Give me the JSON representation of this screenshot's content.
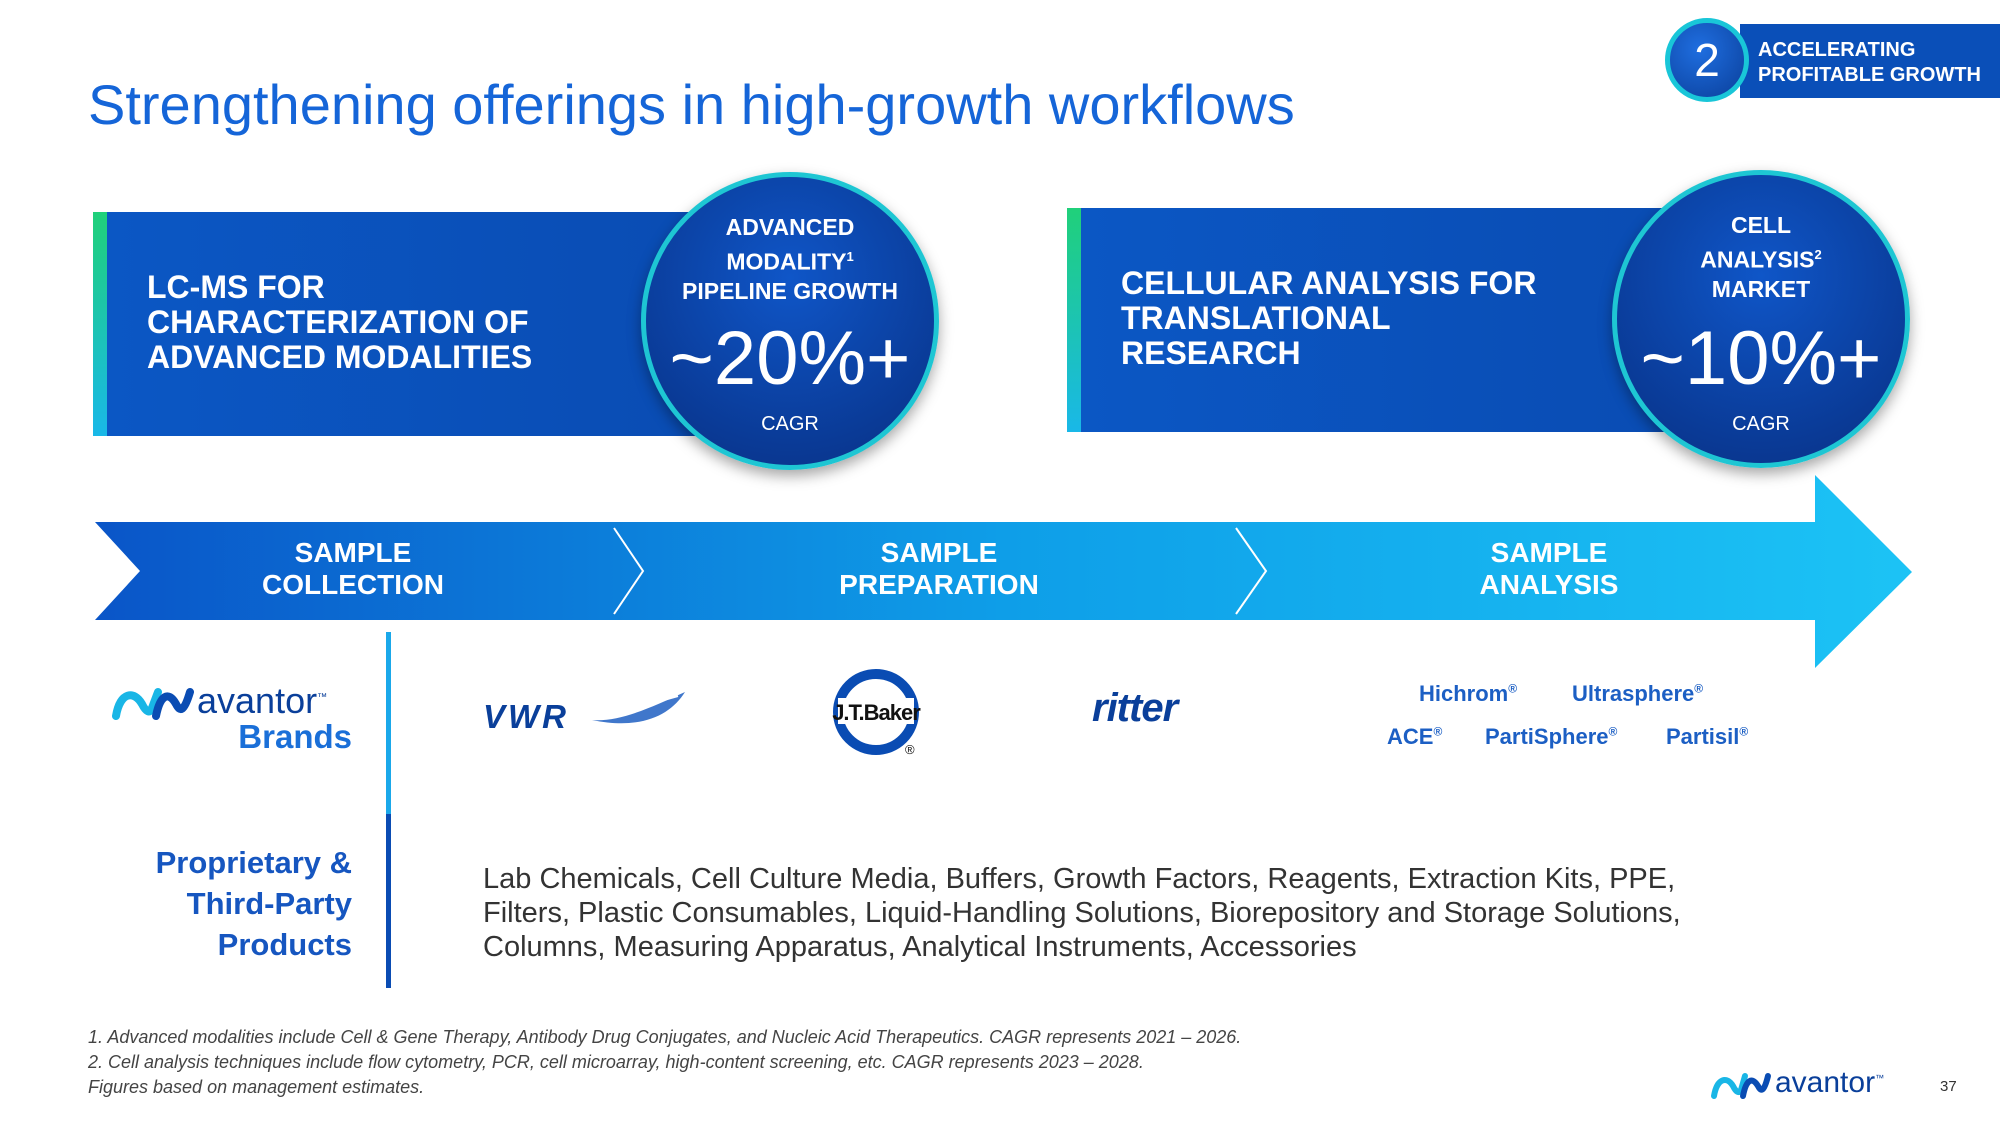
{
  "title": "Strengthening offerings in high-growth workflows",
  "badge": {
    "number": "2",
    "line1": "ACCELERATING",
    "line2": "PROFITABLE GROWTH"
  },
  "box1": {
    "lines": [
      "LC-MS FOR",
      "CHARACTERIZATION OF",
      "ADVANCED MODALITIES"
    ],
    "circle": {
      "line1": "ADVANCED",
      "line2": "MODALITY",
      "sup": "1",
      "line3": "PIPELINE GROWTH",
      "value": "~20%+",
      "unit": "CAGR"
    }
  },
  "box2": {
    "lines": [
      "CELLULAR ANALYSIS FOR",
      "TRANSLATIONAL",
      "RESEARCH"
    ],
    "circle": {
      "line1": "CELL",
      "line2": "ANALYSIS",
      "sup": "2",
      "line3": "MARKET",
      "value": "~10%+",
      "unit": "CAGR"
    }
  },
  "workflow": [
    {
      "line1": "SAMPLE",
      "line2": "COLLECTION"
    },
    {
      "line1": "SAMPLE",
      "line2": "PREPARATION"
    },
    {
      "line1": "SAMPLE",
      "line2": "ANALYSIS"
    }
  ],
  "avantor_brands": {
    "logo": "avantor",
    "tm": "™",
    "label": "Brands"
  },
  "logos": {
    "vwr": "VWR",
    "jtbaker": "J.T.Baker",
    "jtbaker_reg": "®",
    "ritter": "ritter"
  },
  "analysis_brands": [
    {
      "name": "Hichrom",
      "reg": "®"
    },
    {
      "name": "Ultrasphere",
      "reg": "®"
    },
    {
      "name": "ACE",
      "reg": "®"
    },
    {
      "name": "PartiSphere",
      "reg": "®"
    },
    {
      "name": "Partisil",
      "reg": "®"
    }
  ],
  "proprietary": {
    "line1": "Proprietary &",
    "line2": "Third-Party",
    "line3": "Products"
  },
  "products": {
    "line1": "Lab Chemicals, Cell Culture Media, Buffers, Growth Factors, Reagents, Extraction Kits, PPE,",
    "line2": "Filters, Plastic Consumables, Liquid-Handling Solutions, Biorepository and Storage Solutions,",
    "line3": "Columns, Measuring Apparatus, Analytical Instruments, Accessories"
  },
  "footnotes": [
    "1. Advanced modalities include Cell & Gene Therapy, Antibody Drug Conjugates, and Nucleic Acid Therapeutics. CAGR represents 2021 – 2026.",
    "2. Cell analysis techniques include flow cytometry, PCR, cell microarray, high-content screening, etc. CAGR represents 2023 – 2028.",
    "Figures based on management estimates."
  ],
  "footer_logo": {
    "text": "avantor",
    "tm": "™"
  },
  "page_number": "37",
  "colors": {
    "primary_blue": "#1565d8",
    "dark_blue": "#0a4cb3",
    "cyan": "#1ec6d3",
    "arrow_light": "#1cc3f5"
  }
}
